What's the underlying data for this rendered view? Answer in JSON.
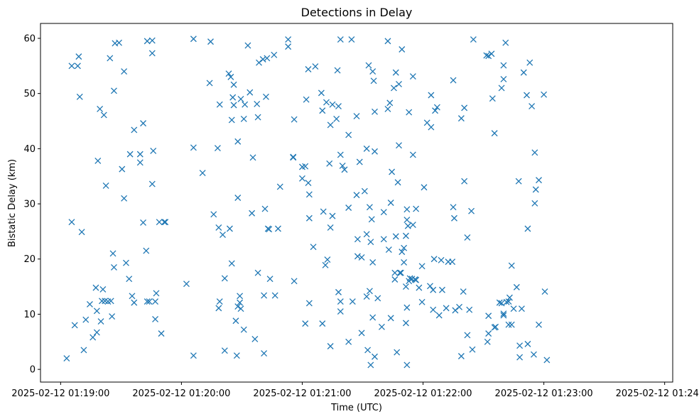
{
  "chart_data": {
    "type": "scatter",
    "title": "Detections in Delay",
    "xlabel": "Time (UTC)",
    "ylabel": "Bistatic Delay (km)",
    "xlim": [
      "2025-02-12 01:18:50",
      "2025-02-12 01:24:04"
    ],
    "ylim": [
      -2.3,
      62.7
    ],
    "x_ticks": [
      "2025-02-12 01:19:00",
      "2025-02-12 01:20:00",
      "2025-02-12 01:21:00",
      "2025-02-12 01:22:00",
      "2025-02-12 01:23:00",
      "2025-02-12 01:24:00"
    ],
    "y_ticks": [
      0,
      10,
      20,
      30,
      40,
      50,
      60
    ],
    "grid": false,
    "marker": "x",
    "color": "#1f77b4",
    "points": [
      [
        "01:19:03.0",
        2
      ],
      [
        "01:19:05.5",
        26.7
      ],
      [
        "01:19:05.5",
        55
      ],
      [
        "01:19:07.0",
        8
      ],
      [
        "01:19:08.5",
        55
      ],
      [
        "01:19:09.0",
        56.7
      ],
      [
        "01:19:09.5",
        49.4
      ],
      [
        "01:19:10.5",
        24.9
      ],
      [
        "01:19:11.5",
        3.5
      ],
      [
        "01:19:12.5",
        9
      ],
      [
        "01:19:14.5",
        11.8
      ],
      [
        "01:19:16.0",
        5.8
      ],
      [
        "01:19:17.5",
        14.8
      ],
      [
        "01:19:18.0",
        6.7
      ],
      [
        "01:19:18.0",
        10.6
      ],
      [
        "01:19:18.5",
        37.8
      ],
      [
        "01:19:19.5",
        47.2
      ],
      [
        "01:19:20.0",
        8.7
      ],
      [
        "01:19:20.5",
        12.4
      ],
      [
        "01:19:21.0",
        14.5
      ],
      [
        "01:19:21.5",
        46.1
      ],
      [
        "01:19:22.0",
        12.4
      ],
      [
        "01:19:22.5",
        33.3
      ],
      [
        "01:19:23.5",
        12.3
      ],
      [
        "01:19:24.5",
        56.4
      ],
      [
        "01:19:25.0",
        12.4
      ],
      [
        "01:19:25.5",
        9.6
      ],
      [
        "01:19:26.0",
        21
      ],
      [
        "01:19:26.5",
        18.5
      ],
      [
        "01:19:26.5",
        50.5
      ],
      [
        "01:19:27.0",
        59.1
      ],
      [
        "01:19:29.0",
        59.2
      ],
      [
        "01:19:30.5",
        36.3
      ],
      [
        "01:19:31.5",
        31
      ],
      [
        "01:19:31.5",
        54
      ],
      [
        "01:19:32.5",
        19.3
      ],
      [
        "01:19:34.0",
        16.4
      ],
      [
        "01:19:34.5",
        39
      ],
      [
        "01:19:35.5",
        13.3
      ],
      [
        "01:19:36.5",
        12.1
      ],
      [
        "01:19:36.5",
        43.4
      ],
      [
        "01:19:39.5",
        39
      ],
      [
        "01:19:39.5",
        37.5
      ],
      [
        "01:19:41.0",
        26.6
      ],
      [
        "01:19:41.0",
        44.6
      ],
      [
        "01:19:42.5",
        21.5
      ],
      [
        "01:19:43.0",
        12.3
      ],
      [
        "01:19:43.0",
        59.5
      ],
      [
        "01:19:44.0",
        12.3
      ],
      [
        "01:19:45.5",
        59.6
      ],
      [
        "01:19:45.5",
        57.3
      ],
      [
        "01:19:45.5",
        33.6
      ],
      [
        "01:19:46.0",
        39.6
      ],
      [
        "01:19:47.0",
        9.1
      ],
      [
        "01:19:47.0",
        12.3
      ],
      [
        "01:19:47.5",
        13.8
      ],
      [
        "01:19:49.0",
        26.7
      ],
      [
        "01:19:50.0",
        6.5
      ],
      [
        "01:19:51.5",
        26.7
      ],
      [
        "01:19:52.0",
        26.7
      ],
      [
        "01:20:02.5",
        15.5
      ],
      [
        "01:20:06.0",
        59.9
      ],
      [
        "01:20:06.0",
        40.2
      ],
      [
        "01:20:06.0",
        2.5
      ],
      [
        "01:20:10.5",
        35.6
      ],
      [
        "01:20:14.0",
        51.9
      ],
      [
        "01:20:14.5",
        59.4
      ],
      [
        "01:20:16.0",
        28.1
      ],
      [
        "01:20:18.0",
        40.1
      ],
      [
        "01:20:18.5",
        11.1
      ],
      [
        "01:20:18.5",
        25.7
      ],
      [
        "01:20:19.0",
        48
      ],
      [
        "01:20:19.0",
        12.3
      ],
      [
        "01:20:20.5",
        24.4
      ],
      [
        "01:20:21.5",
        16.5
      ],
      [
        "01:20:21.5",
        3.4
      ],
      [
        "01:20:23.5",
        53.6
      ],
      [
        "01:20:24.0",
        25.5
      ],
      [
        "01:20:24.5",
        53
      ],
      [
        "01:20:25.0",
        19.2
      ],
      [
        "01:20:25.0",
        45.2
      ],
      [
        "01:20:25.5",
        49.3
      ],
      [
        "01:20:26.0",
        51.6
      ],
      [
        "01:20:26.0",
        47.9
      ],
      [
        "01:20:27.0",
        8.8
      ],
      [
        "01:20:27.5",
        2.5
      ],
      [
        "01:20:28.0",
        41.3
      ],
      [
        "01:20:28.0",
        11.4
      ],
      [
        "01:20:28.0",
        31.1
      ],
      [
        "01:20:29.0",
        13.3
      ],
      [
        "01:20:29.0",
        12.1
      ],
      [
        "01:20:29.5",
        49
      ],
      [
        "01:20:29.5",
        11
      ],
      [
        "01:20:31.0",
        45.4
      ],
      [
        "01:20:31.0",
        7.2
      ],
      [
        "01:20:31.5",
        48
      ],
      [
        "01:20:33.0",
        58.7
      ],
      [
        "01:20:34.0",
        50.2
      ],
      [
        "01:20:35.0",
        28.3
      ],
      [
        "01:20:35.5",
        38.4
      ],
      [
        "01:20:36.5",
        5.5
      ],
      [
        "01:20:37.5",
        48.1
      ],
      [
        "01:20:38.0",
        17.5
      ],
      [
        "01:20:38.0",
        45.7
      ],
      [
        "01:20:38.5",
        55.6
      ],
      [
        "01:20:40.5",
        56.2
      ],
      [
        "01:20:41.0",
        2.9
      ],
      [
        "01:20:41.0",
        13.4
      ],
      [
        "01:20:41.5",
        29.1
      ],
      [
        "01:20:42.0",
        49.4
      ],
      [
        "01:20:42.5",
        56.4
      ],
      [
        "01:20:43.0",
        25.5
      ],
      [
        "01:20:43.5",
        25.4
      ],
      [
        "01:20:44.0",
        16.4
      ],
      [
        "01:20:46.0",
        57
      ],
      [
        "01:20:46.5",
        13.4
      ],
      [
        "01:20:48.0",
        25.5
      ],
      [
        "01:20:49.0",
        33.1
      ],
      [
        "01:20:53.0",
        59.8
      ],
      [
        "01:20:53.0",
        58.5
      ],
      [
        "01:20:55.5",
        38.5
      ],
      [
        "01:20:55.5",
        38.4
      ],
      [
        "01:20:56.0",
        45.3
      ],
      [
        "01:20:56.0",
        16
      ],
      [
        "01:21:00.0",
        36.7
      ],
      [
        "01:21:00.0",
        34.6
      ],
      [
        "01:21:01.5",
        8.3
      ],
      [
        "01:21:01.5",
        36.8
      ],
      [
        "01:21:02.0",
        48.9
      ],
      [
        "01:21:03.0",
        54.4
      ],
      [
        "01:21:03.0",
        33.8
      ],
      [
        "01:21:03.5",
        31.7
      ],
      [
        "01:21:03.5",
        27.4
      ],
      [
        "01:21:03.5",
        12
      ],
      [
        "01:21:05.5",
        22.2
      ],
      [
        "01:21:06.5",
        54.9
      ],
      [
        "01:21:09.5",
        50.1
      ],
      [
        "01:21:10.0",
        46.9
      ],
      [
        "01:21:10.0",
        8.3
      ],
      [
        "01:21:10.5",
        28.6
      ],
      [
        "01:21:11.5",
        18.9
      ],
      [
        "01:21:12.0",
        48.4
      ],
      [
        "01:21:12.5",
        19.9
      ],
      [
        "01:21:13.5",
        37.3
      ],
      [
        "01:21:14.0",
        44.3
      ],
      [
        "01:21:14.0",
        25.7
      ],
      [
        "01:21:14.0",
        4.2
      ],
      [
        "01:21:15.0",
        48
      ],
      [
        "01:21:15.0",
        27.8
      ],
      [
        "01:21:17.0",
        45.4
      ],
      [
        "01:21:17.5",
        54.2
      ],
      [
        "01:21:18.0",
        47.7
      ],
      [
        "01:21:18.0",
        14
      ],
      [
        "01:21:19.0",
        59.8
      ],
      [
        "01:21:19.0",
        38.9
      ],
      [
        "01:21:19.0",
        12.3
      ],
      [
        "01:21:19.0",
        10.5
      ],
      [
        "01:21:20.0",
        36.9
      ],
      [
        "01:21:21.0",
        36.2
      ],
      [
        "01:21:23.0",
        29.3
      ],
      [
        "01:21:23.0",
        42.5
      ],
      [
        "01:21:23.0",
        5
      ],
      [
        "01:21:24.5",
        59.8
      ],
      [
        "01:21:25.0",
        12.3
      ],
      [
        "01:21:27.0",
        45.9
      ],
      [
        "01:21:27.0",
        31.6
      ],
      [
        "01:21:27.5",
        23.6
      ],
      [
        "01:21:27.5",
        20.5
      ],
      [
        "01:21:28.5",
        37.6
      ],
      [
        "01:21:29.5",
        20.3
      ],
      [
        "01:21:29.5",
        6.6
      ],
      [
        "01:21:31.0",
        32.3
      ],
      [
        "01:21:32.0",
        40
      ],
      [
        "01:21:32.0",
        24.5
      ],
      [
        "01:21:32.0",
        13.2
      ],
      [
        "01:21:32.5",
        3.5
      ],
      [
        "01:21:33.0",
        55.1
      ],
      [
        "01:21:33.5",
        29.4
      ],
      [
        "01:21:33.5",
        14.2
      ],
      [
        "01:21:34.0",
        23.1
      ],
      [
        "01:21:34.0",
        0.8
      ],
      [
        "01:21:34.5",
        27.2
      ],
      [
        "01:21:35.0",
        54
      ],
      [
        "01:21:35.0",
        19.4
      ],
      [
        "01:21:35.0",
        9.4
      ],
      [
        "01:21:35.5",
        52.3
      ],
      [
        "01:21:36.0",
        46.7
      ],
      [
        "01:21:36.0",
        39.5
      ],
      [
        "01:21:36.0",
        2.3
      ],
      [
        "01:21:37.5",
        12.9
      ],
      [
        "01:21:39.5",
        7.7
      ],
      [
        "01:21:40.5",
        28.5
      ],
      [
        "01:21:40.5",
        23.6
      ],
      [
        "01:21:42.5",
        59.5
      ],
      [
        "01:21:42.5",
        47.2
      ],
      [
        "01:21:43.0",
        21.7
      ],
      [
        "01:21:43.5",
        48.3
      ],
      [
        "01:21:44.0",
        30.2
      ],
      [
        "01:21:44.0",
        9.3
      ],
      [
        "01:21:44.5",
        35.8
      ],
      [
        "01:21:45.5",
        51
      ],
      [
        "01:21:46.0",
        17.5
      ],
      [
        "01:21:46.0",
        16.3
      ],
      [
        "01:21:46.5",
        53.8
      ],
      [
        "01:21:46.5",
        24.1
      ],
      [
        "01:21:47.0",
        3.1
      ],
      [
        "01:21:47.5",
        33.9
      ],
      [
        "01:21:48.0",
        51.7
      ],
      [
        "01:21:48.0",
        40.6
      ],
      [
        "01:21:48.5",
        17.5
      ],
      [
        "01:21:49.0",
        17.5
      ],
      [
        "01:21:49.5",
        58
      ],
      [
        "01:21:49.5",
        21.3
      ],
      [
        "01:21:50.5",
        22
      ],
      [
        "01:21:50.5",
        19.4
      ],
      [
        "01:21:51.5",
        15
      ],
      [
        "01:21:51.5",
        8.4
      ],
      [
        "01:21:51.5",
        24.2
      ],
      [
        "01:21:52.0",
        29
      ],
      [
        "01:21:52.0",
        27.1
      ],
      [
        "01:21:52.0",
        11.2
      ],
      [
        "01:21:52.0",
        0.8
      ],
      [
        "01:21:52.5",
        26
      ],
      [
        "01:21:53.0",
        46.6
      ],
      [
        "01:21:53.0",
        16
      ],
      [
        "01:21:53.5",
        16.5
      ],
      [
        "01:21:54.5",
        16.4
      ],
      [
        "01:21:55.0",
        53.1
      ],
      [
        "01:21:55.0",
        38.9
      ],
      [
        "01:21:55.0",
        26.2
      ],
      [
        "01:21:56.0",
        16.3
      ],
      [
        "01:21:56.5",
        16.2
      ],
      [
        "01:21:56.5",
        29.1
      ],
      [
        "01:21:58.0",
        14.8
      ],
      [
        "01:21:59.5",
        18.7
      ],
      [
        "01:21:59.5",
        12.2
      ],
      [
        "01:22:00.5",
        33
      ],
      [
        "01:22:02.0",
        44.7
      ],
      [
        "01:22:03.5",
        15.1
      ],
      [
        "01:22:04.0",
        49.7
      ],
      [
        "01:22:04.0",
        43.9
      ],
      [
        "01:22:05.0",
        14.4
      ],
      [
        "01:22:05.0",
        10.8
      ],
      [
        "01:22:05.5",
        20
      ],
      [
        "01:22:06.0",
        46.9
      ],
      [
        "01:22:07.0",
        47.5
      ],
      [
        "01:22:08.0",
        9.8
      ],
      [
        "01:22:09.0",
        19.8
      ],
      [
        "01:22:09.5",
        14.4
      ],
      [
        "01:22:11.5",
        11.1
      ],
      [
        "01:22:12.5",
        19.5
      ],
      [
        "01:22:14.5",
        19.5
      ],
      [
        "01:22:15.0",
        29.4
      ],
      [
        "01:22:15.0",
        52.4
      ],
      [
        "01:22:15.5",
        27.4
      ],
      [
        "01:22:16.0",
        10.7
      ],
      [
        "01:22:18.0",
        11.3
      ],
      [
        "01:22:19.0",
        45.5
      ],
      [
        "01:22:19.0",
        2.4
      ],
      [
        "01:22:20.0",
        14.1
      ],
      [
        "01:22:20.5",
        47.4
      ],
      [
        "01:22:20.5",
        34.1
      ],
      [
        "01:22:22.0",
        23.9
      ],
      [
        "01:22:22.0",
        6.2
      ],
      [
        "01:22:23.0",
        10.8
      ],
      [
        "01:22:24.0",
        28.7
      ],
      [
        "01:22:24.5",
        3.6
      ],
      [
        "01:22:25.0",
        59.8
      ],
      [
        "01:22:31.5",
        56.9
      ],
      [
        "01:22:32.0",
        5
      ],
      [
        "01:22:32.5",
        56.8
      ],
      [
        "01:22:32.5",
        9.7
      ],
      [
        "01:22:32.5",
        6.5
      ],
      [
        "01:22:34.0",
        57.2
      ],
      [
        "01:22:34.5",
        49.1
      ],
      [
        "01:22:35.5",
        42.8
      ],
      [
        "01:22:35.5",
        7.6
      ],
      [
        "01:22:36.0",
        7.7
      ],
      [
        "01:22:38.0",
        12.1
      ],
      [
        "01:22:39.0",
        51
      ],
      [
        "01:22:39.0",
        12
      ],
      [
        "01:22:40.0",
        55.1
      ],
      [
        "01:22:40.0",
        52.6
      ],
      [
        "01:22:40.0",
        10.1
      ],
      [
        "01:22:40.0",
        9.8
      ],
      [
        "01:22:41.0",
        59.2
      ],
      [
        "01:22:41.5",
        12.2
      ],
      [
        "01:22:42.5",
        12.3
      ],
      [
        "01:22:42.5",
        8.1
      ],
      [
        "01:22:43.0",
        13
      ],
      [
        "01:22:44.0",
        18.8
      ],
      [
        "01:22:44.0",
        8.1
      ],
      [
        "01:22:45.0",
        11
      ],
      [
        "01:22:46.5",
        14.9
      ],
      [
        "01:22:47.5",
        34.1
      ],
      [
        "01:22:48.0",
        4.3
      ],
      [
        "01:22:48.0",
        2.2
      ],
      [
        "01:22:49.0",
        11
      ],
      [
        "01:22:50.0",
        53.8
      ],
      [
        "01:22:51.5",
        49.7
      ],
      [
        "01:22:52.0",
        25.5
      ],
      [
        "01:22:52.0",
        4.6
      ],
      [
        "01:22:53.0",
        55.6
      ],
      [
        "01:22:54.0",
        47.7
      ],
      [
        "01:22:55.0",
        2.7
      ],
      [
        "01:22:55.5",
        39.3
      ],
      [
        "01:22:55.5",
        30.1
      ],
      [
        "01:22:56.0",
        32.6
      ],
      [
        "01:22:57.5",
        34.3
      ],
      [
        "01:22:57.5",
        8.1
      ],
      [
        "01:23:00.0",
        49.8
      ],
      [
        "01:23:00.5",
        14.1
      ],
      [
        "01:23:01.5",
        1.7
      ]
    ]
  }
}
